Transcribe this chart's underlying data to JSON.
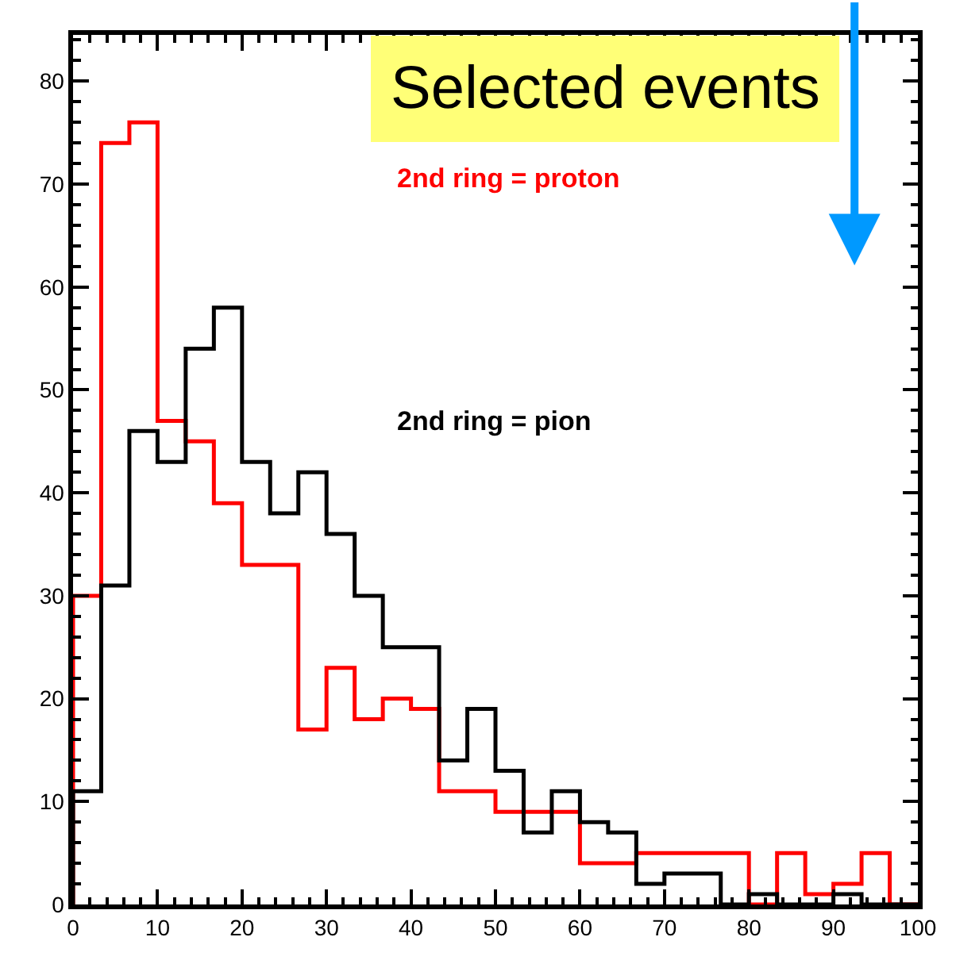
{
  "chart_data": {
    "type": "histogram",
    "title": "Selected events",
    "bins": [
      0,
      3.333,
      6.667,
      10,
      13.333,
      16.667,
      20,
      23.333,
      26.667,
      30,
      33.333,
      36.667,
      40,
      43.333,
      46.667,
      50,
      53.333,
      56.667,
      60,
      63.333,
      66.667,
      70,
      73.333,
      76.667,
      80,
      83.333,
      86.667,
      90,
      93.333,
      96.667,
      100
    ],
    "series": [
      {
        "name": "2nd ring = proton",
        "color": "#ff0000",
        "values": [
          30,
          74,
          76,
          47,
          45,
          39,
          33,
          33,
          17,
          23,
          18,
          20,
          19,
          11,
          11,
          9,
          9,
          9,
          4,
          4,
          5,
          5,
          5,
          5,
          0,
          5,
          1,
          2,
          5,
          0
        ]
      },
      {
        "name": "2nd ring = pion",
        "color": "#000000",
        "values": [
          11,
          31,
          46,
          43,
          54,
          58,
          43,
          38,
          42,
          36,
          30,
          25,
          25,
          14,
          19,
          13,
          7,
          11,
          8,
          7,
          2,
          3,
          3,
          0,
          1,
          0,
          0,
          1,
          0,
          0
        ]
      }
    ],
    "xlim": [
      0,
      100
    ],
    "xticks": [
      0,
      10,
      20,
      30,
      40,
      50,
      60,
      70,
      80,
      90,
      100
    ],
    "ylim": [
      0,
      84.5
    ],
    "yticks": [
      0,
      10,
      20,
      30,
      40,
      50,
      60,
      70,
      80
    ]
  }
}
